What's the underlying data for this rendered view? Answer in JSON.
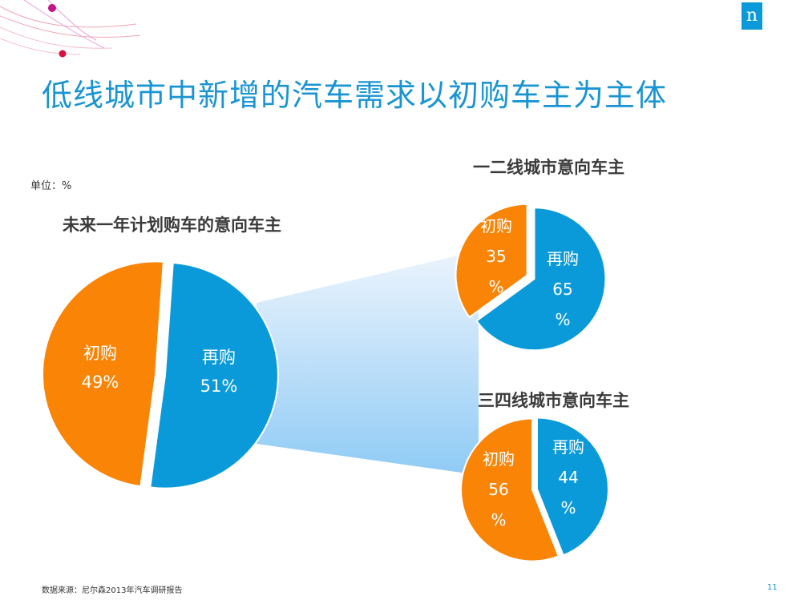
{
  "logo": {
    "text": "n"
  },
  "title": "低线城市中新增的汽车需求以初购车主为主体",
  "unit": "单位：%",
  "chart_data": [
    {
      "type": "pie",
      "title": "未来一年计划购车的意向车主",
      "slices": [
        {
          "label": "初购",
          "value": 49,
          "value_text": "49%"
        },
        {
          "label": "再购",
          "value": 51,
          "value_text": "51%"
        }
      ]
    },
    {
      "type": "pie",
      "title": "一二线城市意向车主",
      "slices": [
        {
          "label": "初购",
          "value": 35,
          "value_text": "35",
          "pct_text": "%"
        },
        {
          "label": "再购",
          "value": 65,
          "value_text": "65",
          "pct_text": "%"
        }
      ]
    },
    {
      "type": "pie",
      "title": "三四线城市意向车主",
      "slices": [
        {
          "label": "初购",
          "value": 56,
          "value_text": "56",
          "pct_text": "%"
        },
        {
          "label": "再购",
          "value": 44,
          "value_text": "44",
          "pct_text": "%"
        }
      ]
    }
  ],
  "colors": {
    "first_purchase": "#f98406",
    "repurchase": "#0a9ad9",
    "title": "#1a95d2"
  },
  "footer": {
    "source": "数据来源：尼尔森2013年汽车调研报告",
    "page": "11"
  }
}
